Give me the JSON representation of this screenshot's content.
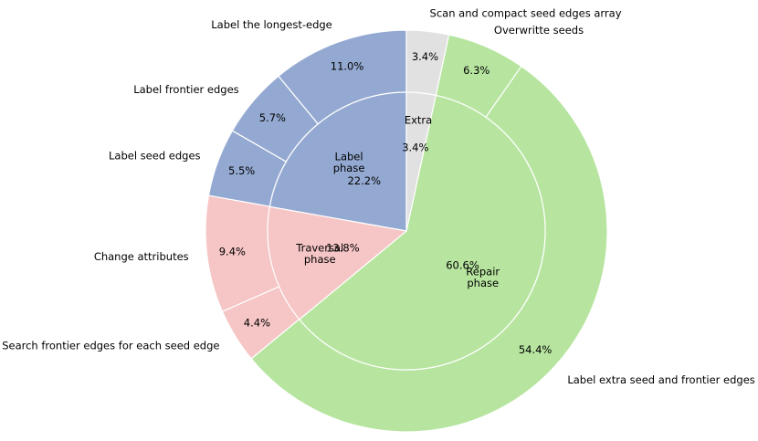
{
  "chart_data": {
    "type": "pie",
    "subtype": "nested-donut",
    "inner": {
      "labels": [
        "Label\nphase",
        "Traversal\nphase",
        "Repair\nphase",
        "Extra"
      ],
      "values": [
        22.2,
        13.8,
        60.6,
        3.4
      ],
      "value_labels": [
        "22.2%",
        "13.8%",
        "60.6%",
        "3.4%"
      ],
      "colors": [
        "#94a9d1",
        "#f6c5c5",
        "#b7e5a0",
        "#e1e1e1"
      ]
    },
    "outer": {
      "labels": [
        "Label the longest-edge",
        "Label frontier edges",
        "Label seed edges",
        "Change attributes",
        "Search frontier edges for each seed edge",
        "Label extra seed and frontier edges",
        "Overwritte seeds",
        "Scan and compact seed edges array"
      ],
      "values": [
        11.0,
        5.7,
        5.5,
        9.4,
        4.4,
        54.4,
        6.3,
        3.4
      ],
      "value_labels": [
        "11.0%",
        "5.7%",
        "5.5%",
        "9.4%",
        "4.4%",
        "54.4%",
        "6.3%",
        "3.4%"
      ],
      "colors": [
        "#94a9d1",
        "#94a9d1",
        "#94a9d1",
        "#f6c5c5",
        "#f6c5c5",
        "#b7e5a0",
        "#b7e5a0",
        "#e1e1e1"
      ]
    },
    "edge_color": "#ffffff"
  }
}
